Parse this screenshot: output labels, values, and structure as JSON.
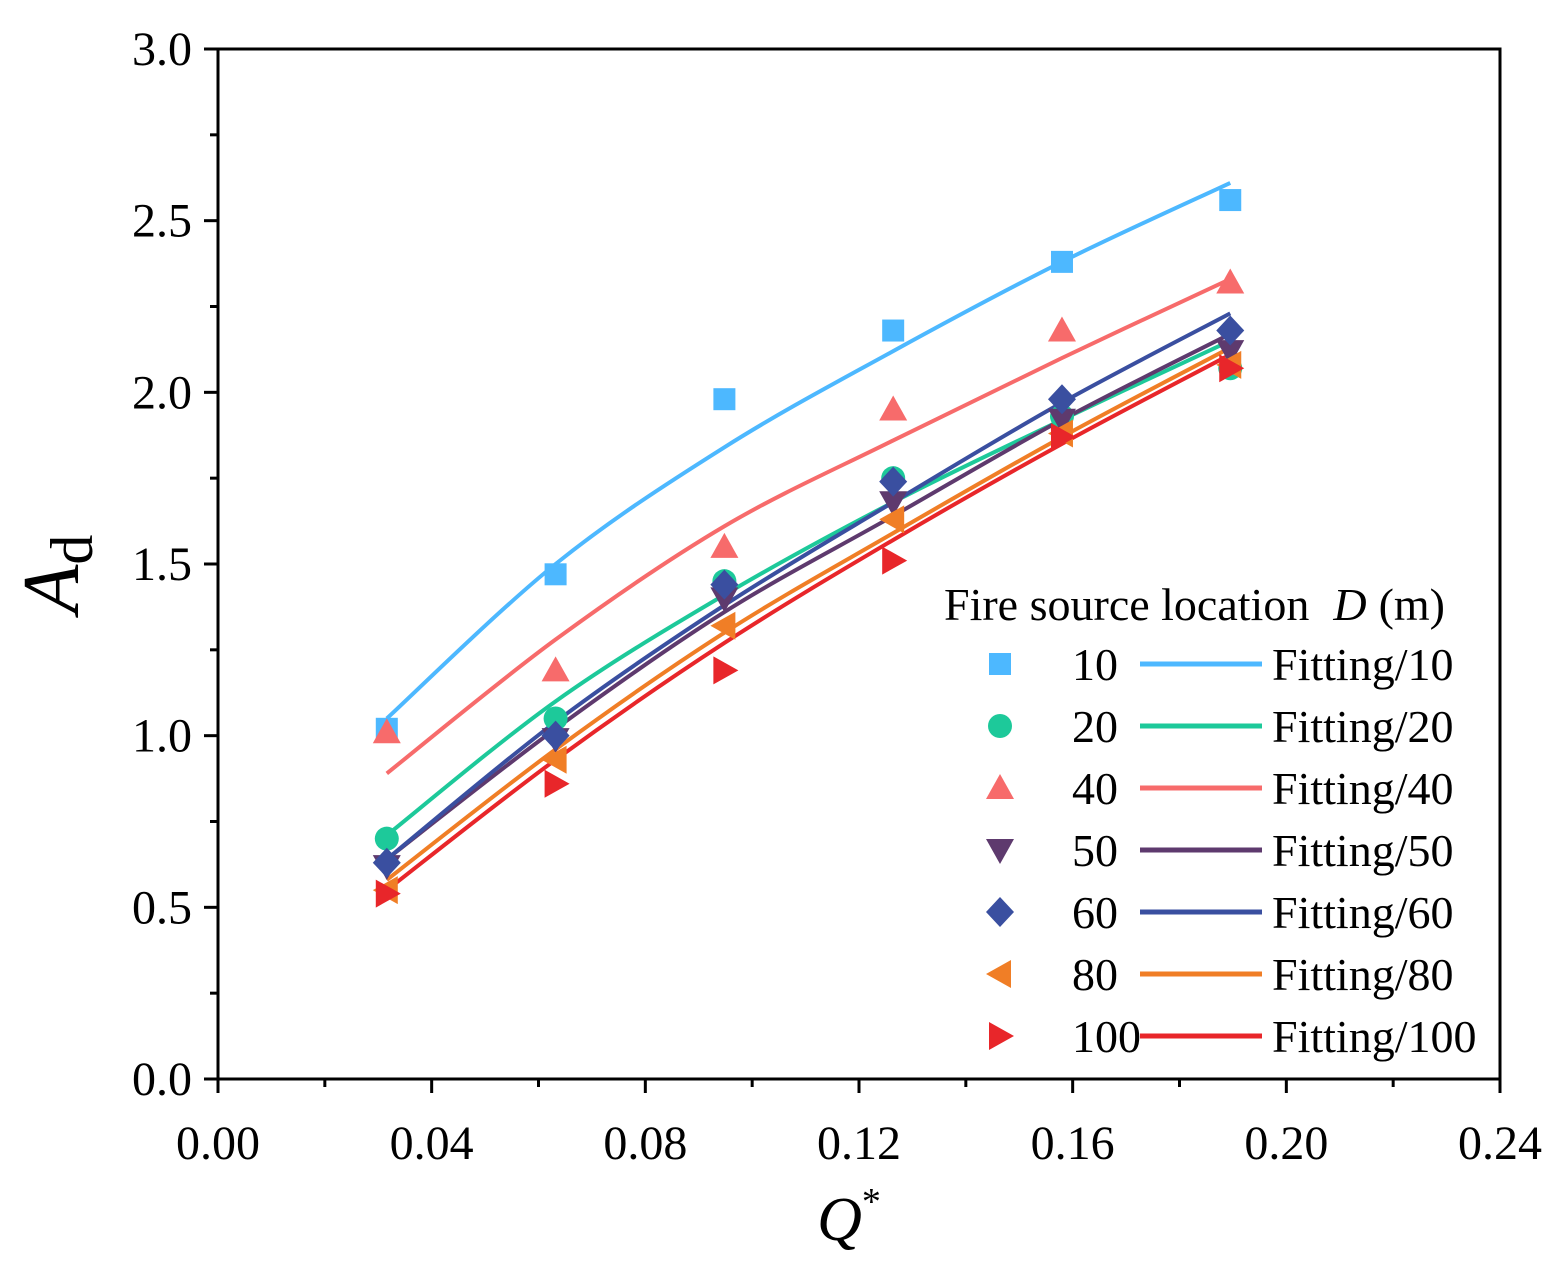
{
  "chart_data": {
    "type": "scatter",
    "title": "",
    "xlabel": "Q",
    "xlabel_sup": "*",
    "ylabel": "A",
    "ylabel_sub": "d",
    "xlim": [
      0.0,
      0.24
    ],
    "ylim": [
      0.0,
      3.0
    ],
    "x_ticks": [
      0.0,
      0.04,
      0.08,
      0.12,
      0.16,
      0.2,
      0.24
    ],
    "x_tick_labels": [
      "0.00",
      "0.04",
      "0.08",
      "0.12",
      "0.16",
      "0.20",
      "0.24"
    ],
    "y_ticks": [
      0.0,
      0.5,
      1.0,
      1.5,
      2.0,
      2.5,
      3.0
    ],
    "y_tick_labels": [
      "0.0",
      "0.5",
      "1.0",
      "1.5",
      "2.0",
      "2.5",
      "3.0"
    ],
    "x_minor_step": 0.02,
    "y_minor_step": 0.25,
    "grid": false,
    "legend": {
      "position": "bottom-right",
      "title": "Fire source location",
      "title_var": "D",
      "title_unit": "(m)"
    },
    "x": [
      0.0316,
      0.0632,
      0.0948,
      0.1264,
      0.158,
      0.1895
    ],
    "series": [
      {
        "name": "10",
        "fit_name": "Fitting/10",
        "marker": "square",
        "color": "#4DB8FF",
        "values": [
          1.02,
          1.47,
          1.98,
          2.18,
          2.38,
          2.56
        ],
        "fit": [
          1.05,
          1.5,
          1.84,
          2.12,
          2.38,
          2.61
        ]
      },
      {
        "name": "20",
        "fit_name": "Fitting/20",
        "marker": "circle",
        "color": "#1DC99A",
        "values": [
          0.7,
          1.05,
          1.45,
          1.75,
          1.93,
          2.07
        ],
        "fit": [
          0.71,
          1.1,
          1.41,
          1.68,
          1.92,
          2.15
        ]
      },
      {
        "name": "40",
        "fit_name": "Fitting/40",
        "marker": "triangle-up",
        "color": "#F76B6B",
        "values": [
          1.01,
          1.19,
          1.55,
          1.95,
          2.18,
          2.32
        ],
        "fit": [
          0.89,
          1.28,
          1.61,
          1.86,
          2.1,
          2.33
        ]
      },
      {
        "name": "50",
        "fit_name": "Fitting/50",
        "marker": "triangle-down",
        "color": "#5E3A6E",
        "values": [
          0.62,
          0.99,
          1.4,
          1.68,
          1.92,
          2.12
        ],
        "fit": [
          0.64,
          1.02,
          1.36,
          1.64,
          1.92,
          2.17
        ]
      },
      {
        "name": "60",
        "fit_name": "Fitting/60",
        "marker": "diamond",
        "color": "#3A4FA0",
        "values": [
          0.63,
          1.0,
          1.44,
          1.74,
          1.98,
          2.18
        ],
        "fit": [
          0.64,
          1.04,
          1.38,
          1.68,
          1.97,
          2.23
        ]
      },
      {
        "name": "80",
        "fit_name": "Fitting/80",
        "marker": "triangle-left",
        "color": "#F07E26",
        "values": [
          0.55,
          0.93,
          1.32,
          1.63,
          1.88,
          2.08
        ],
        "fit": [
          0.58,
          0.96,
          1.3,
          1.59,
          1.87,
          2.13
        ]
      },
      {
        "name": "100",
        "fit_name": "Fitting/100",
        "marker": "triangle-right",
        "color": "#E8262A",
        "values": [
          0.54,
          0.86,
          1.19,
          1.51,
          1.87,
          2.07
        ],
        "fit": [
          0.55,
          0.93,
          1.27,
          1.57,
          1.85,
          2.11
        ]
      }
    ]
  }
}
